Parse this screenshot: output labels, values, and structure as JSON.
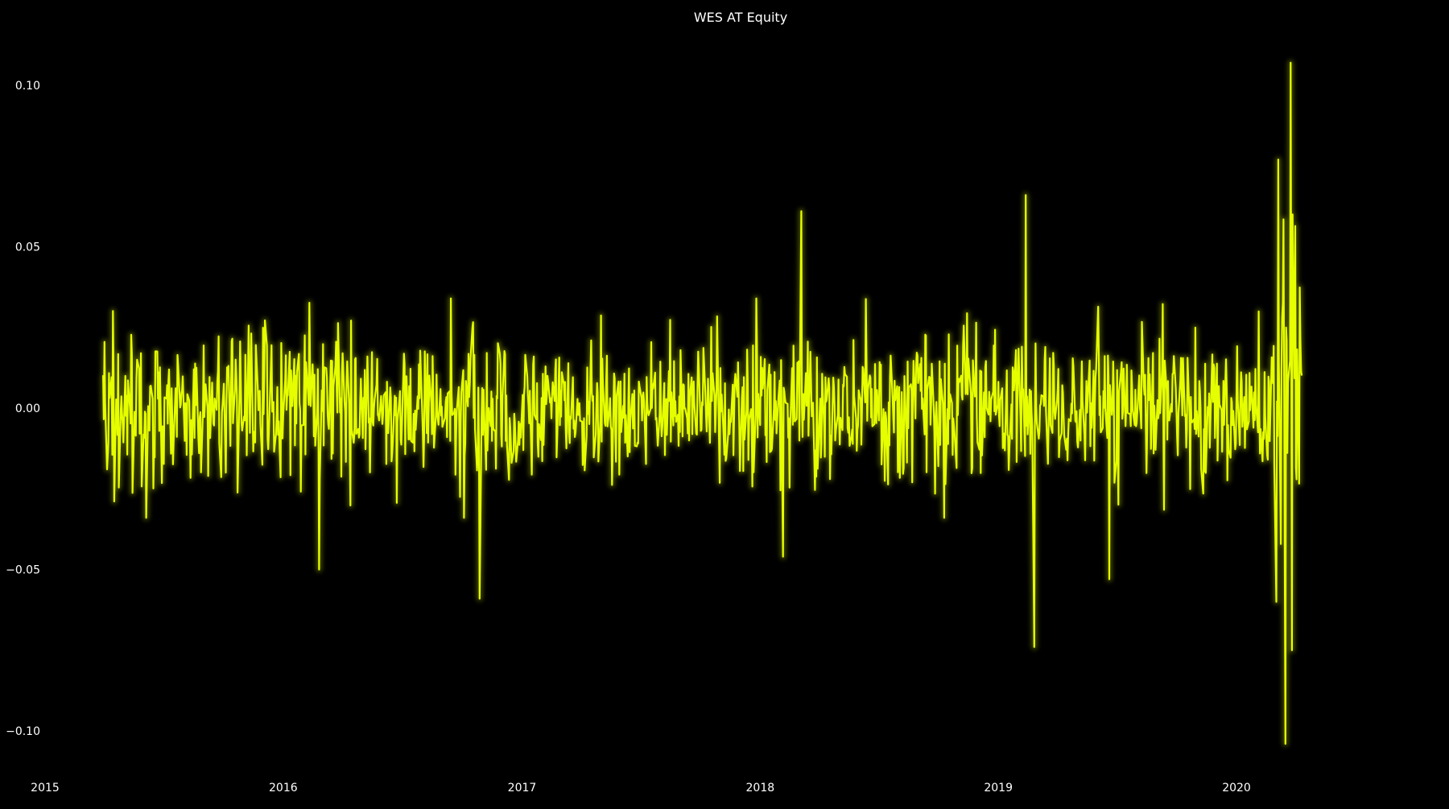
{
  "chart_data": {
    "type": "line",
    "title": "WES AT Equity",
    "xlabel": "",
    "ylabel": "",
    "x_start": "2015-03-31",
    "x_end": "2020-04-10",
    "xlim": [
      "2015-01-01",
      "2020-08-15"
    ],
    "ylim": [
      -0.112,
      0.112
    ],
    "x_ticks": [
      {
        "date": "2015-01-01",
        "label": "2015"
      },
      {
        "date": "2016-01-01",
        "label": "2016"
      },
      {
        "date": "2017-01-01",
        "label": "2017"
      },
      {
        "date": "2018-01-01",
        "label": "2018"
      },
      {
        "date": "2019-01-01",
        "label": "2019"
      },
      {
        "date": "2020-01-01",
        "label": "2020"
      }
    ],
    "y_ticks": [
      {
        "value": 0.1,
        "label": "0.10"
      },
      {
        "value": 0.05,
        "label": "0.05"
      },
      {
        "value": 0.0,
        "label": "0.00"
      },
      {
        "value": -0.05,
        "label": "−0.05"
      },
      {
        "value": -0.1,
        "label": "−0.10"
      }
    ],
    "grid": false,
    "legend": "none",
    "colors": {
      "background": "#000000",
      "line": "#e6ff00",
      "glow": "#c8e000",
      "text": "#ffffff"
    },
    "extremes": [
      {
        "date": "2015-11-01",
        "value": -0.044
      },
      {
        "date": "2015-12-20",
        "value": 0.039
      },
      {
        "date": "2016-02-25",
        "value": -0.05
      },
      {
        "date": "2016-10-28",
        "value": -0.059
      },
      {
        "date": "2018-02-05",
        "value": -0.046
      },
      {
        "date": "2018-03-05",
        "value": 0.061
      },
      {
        "date": "2019-02-12",
        "value": 0.066
      },
      {
        "date": "2019-02-25",
        "value": -0.074
      },
      {
        "date": "2019-06-20",
        "value": -0.053
      },
      {
        "date": "2020-03-05",
        "value": 0.077
      },
      {
        "date": "2020-03-16",
        "value": -0.104
      },
      {
        "date": "2020-03-24",
        "value": 0.107
      },
      {
        "date": "2020-03-26",
        "value": -0.075
      }
    ]
  }
}
